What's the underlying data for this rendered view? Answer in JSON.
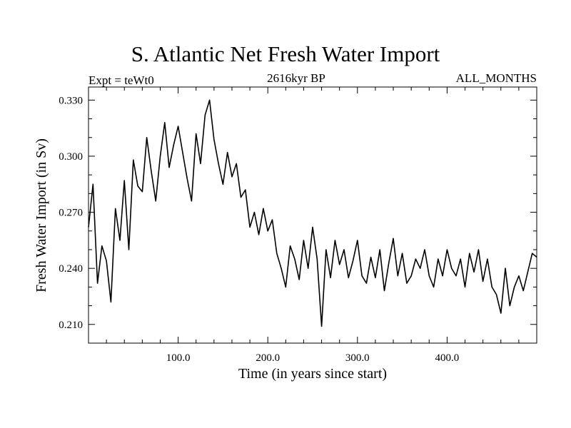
{
  "header": {
    "title": "S. Atlantic Net Fresh Water Import",
    "experiment": "Expt = teWt0",
    "subtitle": "2616kyr BP",
    "months": "ALL_MONTHS"
  },
  "chart_data": {
    "type": "line",
    "title": "S. Atlantic Net Fresh Water Import",
    "xlabel": "Time (in years since start)",
    "ylabel": "Fresh Water Import (in Sv)",
    "xlim": [
      0,
      500
    ],
    "ylim": [
      0.2,
      0.337
    ],
    "xticks": [
      100,
      200,
      300,
      400
    ],
    "xtick_labels": [
      "100.0",
      "200.0",
      "300.0",
      "400.0"
    ],
    "yticks": [
      0.21,
      0.24,
      0.27,
      0.3,
      0.33
    ],
    "ytick_labels": [
      "0.210",
      "0.240",
      "0.270",
      "0.300",
      "0.330"
    ],
    "grid": false,
    "series": [
      {
        "name": "Fresh Water Import",
        "x": [
          0,
          5,
          10,
          15,
          20,
          25,
          30,
          35,
          40,
          45,
          50,
          55,
          60,
          65,
          70,
          75,
          80,
          85,
          90,
          95,
          100,
          105,
          110,
          115,
          120,
          125,
          130,
          135,
          140,
          145,
          150,
          155,
          160,
          165,
          170,
          175,
          180,
          185,
          190,
          195,
          200,
          205,
          210,
          215,
          220,
          225,
          230,
          235,
          240,
          245,
          250,
          255,
          260,
          265,
          270,
          275,
          280,
          285,
          290,
          295,
          300,
          305,
          310,
          315,
          320,
          325,
          330,
          335,
          340,
          345,
          350,
          355,
          360,
          365,
          370,
          375,
          380,
          385,
          390,
          395,
          400,
          405,
          410,
          415,
          420,
          425,
          430,
          435,
          440,
          445,
          450,
          455,
          460,
          465,
          470,
          475,
          480,
          485,
          490,
          495,
          500
        ],
        "values": [
          0.262,
          0.285,
          0.232,
          0.252,
          0.244,
          0.222,
          0.272,
          0.255,
          0.287,
          0.25,
          0.298,
          0.284,
          0.281,
          0.31,
          0.292,
          0.276,
          0.3,
          0.318,
          0.294,
          0.306,
          0.316,
          0.302,
          0.288,
          0.276,
          0.312,
          0.296,
          0.322,
          0.33,
          0.309,
          0.296,
          0.285,
          0.302,
          0.289,
          0.296,
          0.278,
          0.282,
          0.262,
          0.27,
          0.258,
          0.272,
          0.26,
          0.266,
          0.248,
          0.24,
          0.23,
          0.252,
          0.245,
          0.234,
          0.255,
          0.24,
          0.262,
          0.245,
          0.209,
          0.25,
          0.235,
          0.255,
          0.242,
          0.25,
          0.235,
          0.244,
          0.255,
          0.236,
          0.232,
          0.246,
          0.235,
          0.25,
          0.228,
          0.243,
          0.256,
          0.236,
          0.248,
          0.232,
          0.236,
          0.245,
          0.24,
          0.25,
          0.236,
          0.23,
          0.245,
          0.236,
          0.25,
          0.24,
          0.236,
          0.245,
          0.23,
          0.248,
          0.238,
          0.25,
          0.233,
          0.245,
          0.23,
          0.226,
          0.216,
          0.24,
          0.22,
          0.23,
          0.236,
          0.228,
          0.238,
          0.248,
          0.246
        ]
      }
    ]
  }
}
